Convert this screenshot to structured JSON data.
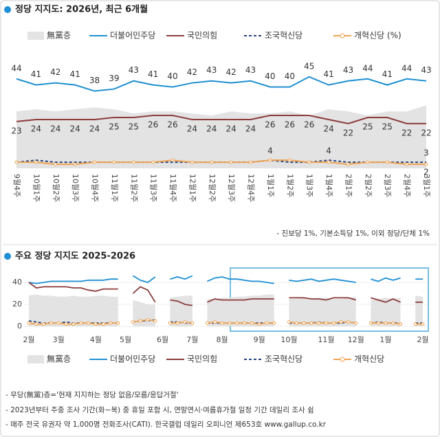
{
  "chart_data": [
    {
      "type": "line",
      "title": "정당 지지도: 2026년, 최근 6개월",
      "categories": [
        "9월4주",
        "10월1주",
        "10월2주",
        "10월3주",
        "10월4주",
        "11월1주",
        "11월2주",
        "11월3주",
        "11월4주",
        "12월1주",
        "12월2주",
        "12월3주",
        "12월4주",
        "1월1주",
        "1월2주",
        "1월3주",
        "1월4주",
        "2월1주",
        "2월2주",
        "2월3주",
        "2월4주",
        "3월1주"
      ],
      "ylim": [
        0,
        50
      ],
      "series": [
        {
          "name": "無黨층",
          "color": "#e3e3e3",
          "area": true,
          "values": [
            28,
            29,
            28,
            29,
            30,
            29,
            27,
            28,
            28,
            27,
            26,
            28,
            27,
            27,
            28,
            26,
            29,
            28,
            26,
            28,
            28,
            31
          ]
        },
        {
          "name": "더불어민주당",
          "color": "#1d8fd2",
          "data_labels": true,
          "values": [
            44,
            41,
            42,
            41,
            38,
            39,
            43,
            41,
            40,
            42,
            43,
            42,
            43,
            40,
            40,
            45,
            41,
            43,
            44,
            41,
            44,
            43
          ]
        },
        {
          "name": "국민의힘",
          "color": "#8c3b3b",
          "data_labels": true,
          "values": [
            23,
            24,
            24,
            24,
            24,
            25,
            25,
            26,
            26,
            24,
            24,
            24,
            24,
            26,
            26,
            26,
            24,
            22,
            25,
            25,
            22,
            22
          ]
        },
        {
          "name": "조국혁신당",
          "color": "#23407c",
          "dashed": true,
          "values": [
            3,
            4,
            3,
            3,
            3,
            3,
            3,
            3,
            3,
            3,
            3,
            3,
            3,
            4,
            3,
            3,
            4,
            3,
            3,
            3,
            3,
            3
          ],
          "value_labels": [
            null,
            null,
            null,
            null,
            null,
            null,
            null,
            null,
            null,
            null,
            null,
            null,
            null,
            null,
            null,
            null,
            "4",
            null,
            null,
            null,
            null,
            "3"
          ]
        },
        {
          "name": "개혁신당 (%)",
          "color": "#f0a24e",
          "marker": "circle",
          "values": [
            3,
            3,
            2,
            2,
            3,
            3,
            3,
            3,
            4,
            3,
            3,
            3,
            3,
            4,
            4,
            3,
            3,
            2,
            3,
            3,
            2,
            2
          ],
          "value_labels": [
            null,
            null,
            null,
            null,
            null,
            null,
            null,
            null,
            null,
            null,
            null,
            null,
            null,
            "4",
            null,
            null,
            null,
            null,
            null,
            null,
            null,
            "2"
          ]
        }
      ],
      "note": "- 진보당 1%, 기본소득당 1%, 이외 정당/단체 1%"
    },
    {
      "type": "line",
      "title": "주요 정당 지지도 2025-2026",
      "categories": [
        "2월",
        null,
        null,
        null,
        "3월",
        null,
        null,
        null,
        null,
        "4월",
        null,
        null,
        null,
        "5월",
        null,
        null,
        null,
        null,
        "6월",
        null,
        null,
        null,
        "7월",
        null,
        null,
        null,
        "8월",
        null,
        null,
        null,
        null,
        "9월",
        null,
        null,
        null,
        "10월",
        null,
        null,
        null,
        null,
        "11월",
        null,
        null,
        null,
        "12월",
        null,
        null,
        null,
        "1월",
        null,
        null,
        null,
        null,
        "2월"
      ],
      "ylim": [
        0,
        45
      ],
      "yticks": [
        0,
        20,
        40
      ],
      "grid": true,
      "series": [
        {
          "name": "無黨층",
          "color": "#e3e3e3",
          "area": true,
          "values": [
            28,
            29,
            28,
            28,
            27,
            27,
            28,
            27,
            27,
            28,
            28,
            27,
            27,
            null,
            24,
            22,
            20,
            20,
            null,
            26,
            27,
            28,
            28,
            null,
            25,
            25,
            26,
            26,
            27,
            27,
            28,
            28,
            29,
            29,
            null,
            25,
            25,
            26,
            25,
            26,
            26,
            25,
            25,
            26,
            27,
            null,
            24,
            25,
            26,
            25,
            26,
            null,
            28,
            27
          ]
        },
        {
          "name": "더불어민주당",
          "color": "#1d8fd2",
          "values": [
            40,
            39,
            40,
            41,
            41,
            41,
            41,
            41,
            42,
            42,
            42,
            43,
            43,
            null,
            46,
            42,
            40,
            45,
            null,
            43,
            45,
            43,
            46,
            null,
            41,
            44,
            45,
            43,
            43,
            42,
            41,
            41,
            40,
            39,
            null,
            42,
            41,
            42,
            43,
            41,
            42,
            43,
            42,
            41,
            40,
            null,
            43,
            41,
            44,
            42,
            44,
            null,
            43,
            43
          ]
        },
        {
          "name": "국민의힘",
          "color": "#8c3b3b",
          "values": [
            40,
            35,
            36,
            36,
            36,
            36,
            35,
            35,
            33,
            32,
            34,
            34,
            34,
            null,
            30,
            36,
            33,
            22,
            null,
            24,
            23,
            20,
            19,
            null,
            22,
            25,
            24,
            24,
            24,
            24,
            25,
            25,
            25,
            25,
            null,
            26,
            26,
            26,
            25,
            25,
            24,
            26,
            26,
            26,
            24,
            null,
            26,
            24,
            22,
            25,
            22,
            null,
            22,
            22
          ]
        },
        {
          "name": "조국혁신당",
          "color": "#23407c",
          "dashed": true,
          "values": [
            5,
            4,
            3,
            3,
            3,
            4,
            3,
            3,
            3,
            3,
            3,
            3,
            3,
            null,
            4,
            5,
            5,
            6,
            null,
            4,
            4,
            3,
            3,
            null,
            3,
            3,
            3,
            3,
            3,
            3,
            3,
            3,
            3,
            3,
            null,
            3,
            3,
            3,
            3,
            4,
            3,
            3,
            3,
            4,
            3,
            null,
            3,
            4,
            3,
            3,
            3,
            null,
            3,
            3
          ]
        },
        {
          "name": "개혁신당",
          "color": "#f0a24e",
          "marker": "circle",
          "values": [
            3,
            2,
            2,
            3,
            3,
            2,
            2,
            3,
            3,
            2,
            2,
            3,
            3,
            null,
            4,
            5,
            6,
            5,
            null,
            3,
            3,
            4,
            3,
            null,
            3,
            4,
            3,
            3,
            3,
            3,
            3,
            2,
            3,
            3,
            null,
            4,
            3,
            3,
            3,
            3,
            3,
            3,
            4,
            4,
            3,
            null,
            3,
            3,
            3,
            3,
            2,
            null,
            2,
            2
          ]
        }
      ]
    }
  ],
  "footnotes": [
    "- 무당(無黨)층='현재 지지하는 정당 없음/모름/응답거절'",
    "- 2023년부터 주중 조사 기간(화~목) 중 휴일 포함 시, 연말연시·여름휴가철 일정 기간 데일리 조사 쉼",
    "- 매주 전국 유권자 약 1,000명 전화조사(CATI). 한국갤럽 데일리 오피니언 제653호 www.gallup.co.kr"
  ]
}
